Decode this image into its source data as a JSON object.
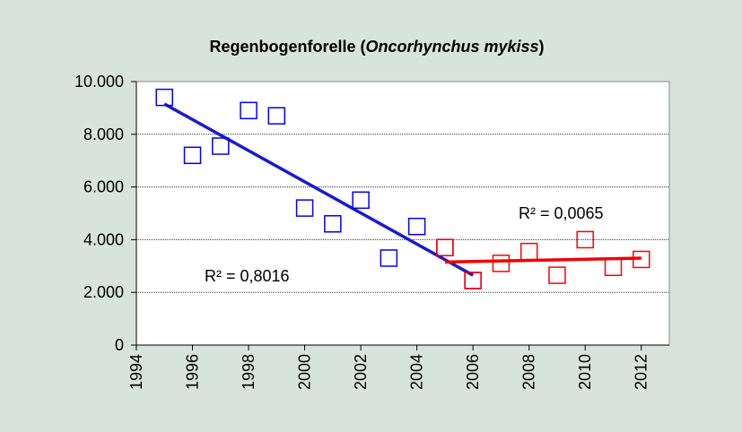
{
  "chart_data": {
    "type": "scatter",
    "title_parts": [
      "Regenbogenforelle (",
      "Oncorhynchus mykiss",
      ")"
    ],
    "xlim": [
      1994,
      2013
    ],
    "xticks": [
      1994,
      1996,
      1998,
      2000,
      2002,
      2004,
      2006,
      2008,
      2010,
      2012
    ],
    "ylim": [
      0,
      10000
    ],
    "yticks": [
      0,
      {
        "value": 2000,
        "label": "2.000"
      },
      {
        "value": 4000,
        "label": "4.000"
      },
      {
        "value": 6000,
        "label": "6.000"
      },
      {
        "value": 8000,
        "label": "8.000"
      },
      {
        "value": 10000,
        "label": "10.000"
      }
    ],
    "grid": true,
    "series": [
      {
        "color": "#0000ff",
        "x": [
          1995,
          1996,
          1997,
          1998,
          1999,
          2000,
          2001,
          2002,
          2003,
          2004,
          2005,
          2006
        ],
        "values": [
          9400,
          7200,
          7550,
          8900,
          8700,
          5200,
          4600,
          5500,
          3300,
          4500,
          3700,
          2450
        ],
        "trendline": {
          "color": "#1a1acc",
          "x": [
            1995,
            2006
          ],
          "values": [
            9150,
            2650
          ]
        }
      },
      {
        "color": "#ff0000",
        "x": [
          2005,
          2006,
          2007,
          2008,
          2009,
          2010,
          2011,
          2012
        ],
        "values": [
          3700,
          2450,
          3100,
          3550,
          2650,
          4000,
          2950,
          3250
        ],
        "trendline": {
          "color": "#ee0000",
          "x": [
            2005,
            2012
          ],
          "values": [
            3150,
            3300
          ]
        }
      }
    ],
    "annotations": [
      "R² = 0,8016",
      "R² = 0,0065"
    ]
  }
}
